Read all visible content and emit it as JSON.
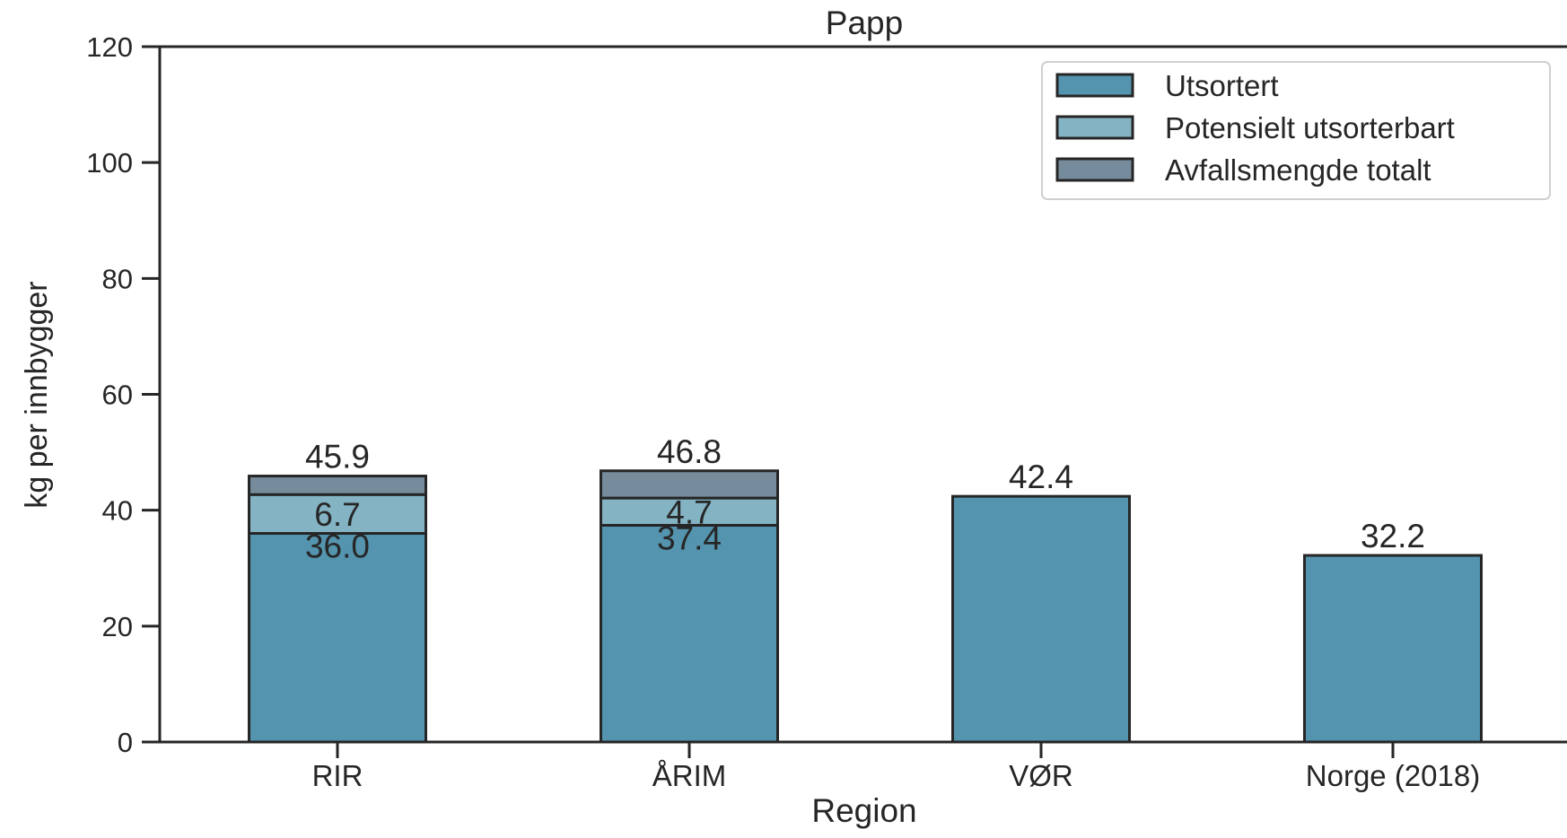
{
  "chart_data": {
    "type": "bar",
    "stacked": true,
    "title": "Papp",
    "xlabel": "Region",
    "ylabel": "kg per innbygger",
    "ylim": [
      0,
      120
    ],
    "yticks": [
      0,
      20,
      40,
      60,
      80,
      100,
      120
    ],
    "categories": [
      "RIR",
      "ÅRIM",
      "VØR",
      "Norge (2018)"
    ],
    "series": [
      {
        "name": "Utsortert",
        "values": [
          36.0,
          37.4,
          42.4,
          32.2
        ],
        "color": "#5494ae"
      },
      {
        "name": "Potensielt utsorterbart",
        "values": [
          6.7,
          4.7,
          null,
          null
        ],
        "color": "#84b4c4"
      },
      {
        "name": "Avfallsmengde totalt",
        "values": [
          3.2,
          4.7,
          null,
          null
        ],
        "color": "#768b9b"
      }
    ],
    "data_labels": [
      {
        "category": "RIR",
        "series": "Utsortert",
        "text": "36.0"
      },
      {
        "category": "RIR",
        "series": "Potensielt utsorterbart",
        "text": "6.7"
      },
      {
        "category": "RIR",
        "series": "Avfallsmengde totalt",
        "text": "45.9"
      },
      {
        "category": "ÅRIM",
        "series": "Utsortert",
        "text": "37.4"
      },
      {
        "category": "ÅRIM",
        "series": "Potensielt utsorterbart",
        "text": "4.7"
      },
      {
        "category": "ÅRIM",
        "series": "Avfallsmengde totalt",
        "text": "46.8"
      },
      {
        "category": "VØR",
        "series": "Utsortert",
        "text": "42.4"
      },
      {
        "category": "Norge (2018)",
        "series": "Utsortert",
        "text": "32.2"
      }
    ],
    "legend_position": "top-right",
    "grid": false
  }
}
